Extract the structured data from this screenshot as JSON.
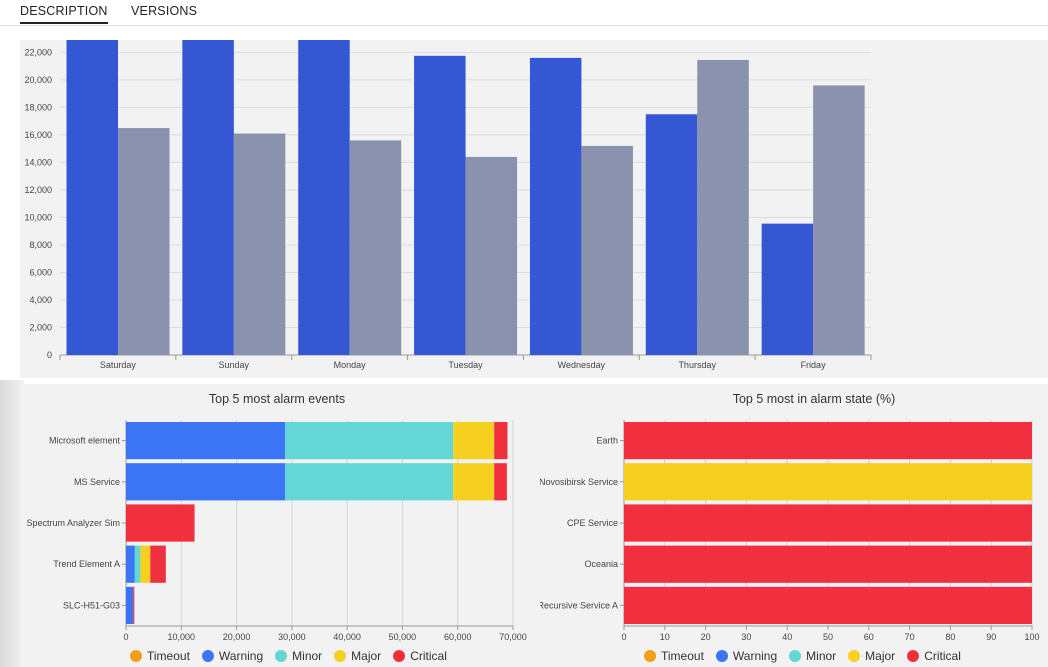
{
  "tabs": [
    {
      "label": "DESCRIPTION",
      "active": true
    },
    {
      "label": "VERSIONS",
      "active": false
    }
  ],
  "chart_data": [
    {
      "type": "bar",
      "title": "",
      "categories": [
        "Saturday",
        "Sunday",
        "Monday",
        "Tuesday",
        "Wednesday",
        "Thursday",
        "Friday"
      ],
      "series": [
        {
          "color": "#3657d4",
          "values": [
            22900,
            22900,
            22900,
            21750,
            21600,
            17500,
            9550
          ]
        },
        {
          "color": "#8a92ad",
          "values": [
            16500,
            16100,
            15600,
            14400,
            15200,
            21450,
            19600
          ]
        }
      ],
      "ylim": [
        0,
        22900
      ],
      "yticks": [
        0,
        2000,
        4000,
        6000,
        8000,
        10000,
        12000,
        14000,
        16000,
        18000,
        20000,
        22000
      ],
      "ytick_labels": [
        "0",
        "2,000",
        "4,000",
        "6,000",
        "8,000",
        "10,000",
        "12,000",
        "14,000",
        "16,000",
        "18,000",
        "20,000",
        "22,000"
      ],
      "grid": true
    },
    {
      "type": "bar",
      "orientation": "horizontal",
      "stacked": true,
      "title": "Top 5 most alarm events",
      "categories": [
        "Microsoft element",
        "MS Service",
        "Spectrum Analyzer Sim",
        "Trend Element A",
        "SLC-H51-G03"
      ],
      "series": [
        {
          "name": "Timeout",
          "color": "#f29f1b",
          "values": [
            0,
            0,
            0,
            0,
            0
          ]
        },
        {
          "name": "Warning",
          "color": "#3a76f4",
          "values": [
            28800,
            28800,
            0,
            1600,
            1300
          ]
        },
        {
          "name": "Minor",
          "color": "#63d6d6",
          "values": [
            30400,
            30400,
            0,
            1000,
            0
          ]
        },
        {
          "name": "Major",
          "color": "#f5d020",
          "values": [
            7400,
            7400,
            0,
            1800,
            0
          ]
        },
        {
          "name": "Critical",
          "color": "#f0303e",
          "values": [
            2400,
            2300,
            12400,
            2800,
            200
          ]
        }
      ],
      "xlim": [
        0,
        70000
      ],
      "xticks": [
        0,
        10000,
        20000,
        30000,
        40000,
        50000,
        60000,
        70000
      ],
      "xtick_labels": [
        "0",
        "10,000",
        "20,000",
        "30,000",
        "40,000",
        "50,000",
        "60,000",
        "70,000"
      ],
      "grid": true,
      "legend": "bottom"
    },
    {
      "type": "bar",
      "orientation": "horizontal",
      "stacked": true,
      "title": "Top 5 most in alarm state (%)",
      "categories": [
        "Earth",
        "Novosibirsk Service",
        "CPE Service",
        "Oceania",
        "Recursive Service A"
      ],
      "series": [
        {
          "name": "Timeout",
          "color": "#f29f1b",
          "values": [
            0,
            0,
            0,
            0,
            0
          ]
        },
        {
          "name": "Warning",
          "color": "#3a76f4",
          "values": [
            0,
            0,
            0,
            0,
            0
          ]
        },
        {
          "name": "Minor",
          "color": "#63d6d6",
          "values": [
            0,
            0,
            0,
            0,
            0
          ]
        },
        {
          "name": "Major",
          "color": "#f5d020",
          "values": [
            0,
            100,
            0,
            0,
            0
          ]
        },
        {
          "name": "Critical",
          "color": "#f0303e",
          "values": [
            100,
            0,
            100,
            100,
            100
          ]
        }
      ],
      "xlim": [
        0,
        100
      ],
      "xticks": [
        0,
        10,
        20,
        30,
        40,
        50,
        60,
        70,
        80,
        90,
        100
      ],
      "xtick_labels": [
        "0",
        "10",
        "20",
        "30",
        "40",
        "50",
        "60",
        "70",
        "80",
        "90",
        "100"
      ],
      "grid": true,
      "legend": "bottom"
    }
  ]
}
